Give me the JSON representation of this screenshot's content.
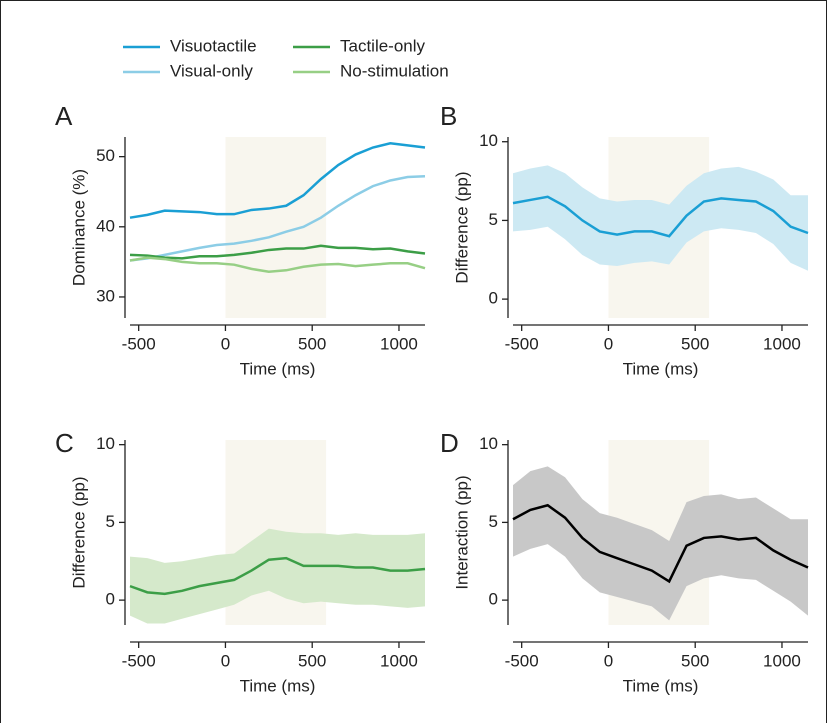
{
  "chart_data": [
    {
      "type": "line",
      "panel_label": "A",
      "xlabel": "Time (ms)",
      "ylabel": "Dominance (%)",
      "legend": "top",
      "x": [
        -550,
        -450,
        -350,
        -250,
        -150,
        -50,
        50,
        150,
        250,
        350,
        450,
        550,
        650,
        750,
        850,
        950,
        1050,
        1150
      ],
      "xlim": [
        -550,
        1150
      ],
      "xticks": [
        -500,
        0,
        500,
        1000
      ],
      "ylim": [
        27,
        52.8
      ],
      "yticks": [
        30,
        40,
        50
      ],
      "highlight": [
        0,
        580
      ],
      "highlight_color": "#f8f6ee",
      "series": [
        {
          "name": "Visuotactile",
          "color": "#1a9fd4",
          "values": [
            41.3,
            41.7,
            42.3,
            42.2,
            42.1,
            41.8,
            41.8,
            42.4,
            42.6,
            43.0,
            44.5,
            46.8,
            48.8,
            50.3,
            51.3,
            51.9,
            51.6,
            51.3
          ]
        },
        {
          "name": "Visual-only",
          "color": "#8ccde6",
          "values": [
            35.2,
            35.5,
            36.0,
            36.5,
            37.0,
            37.4,
            37.6,
            38.0,
            38.5,
            39.3,
            40.0,
            41.3,
            43.0,
            44.5,
            45.8,
            46.6,
            47.1,
            47.2
          ]
        },
        {
          "name": "Tactile-only",
          "color": "#3c9e47",
          "values": [
            36.0,
            35.9,
            35.6,
            35.5,
            35.8,
            35.8,
            36.0,
            36.3,
            36.7,
            36.9,
            36.9,
            37.3,
            37.0,
            37.0,
            36.8,
            36.9,
            36.5,
            36.2
          ]
        },
        {
          "name": "No-stimulation",
          "color": "#97cf85",
          "values": [
            35.2,
            35.6,
            35.4,
            35.0,
            34.8,
            34.8,
            34.6,
            34.0,
            33.6,
            33.8,
            34.3,
            34.6,
            34.7,
            34.4,
            34.6,
            34.8,
            34.8,
            34.1
          ]
        }
      ]
    },
    {
      "type": "line",
      "panel_label": "B",
      "xlabel": "Time (ms)",
      "ylabel": "Difference (pp)",
      "x": [
        -550,
        -450,
        -350,
        -250,
        -150,
        -50,
        50,
        150,
        250,
        350,
        450,
        550,
        650,
        750,
        850,
        950,
        1050,
        1150
      ],
      "xlim": [
        -550,
        1150
      ],
      "xticks": [
        -500,
        0,
        500,
        1000
      ],
      "ylim": [
        -1.2,
        10.3
      ],
      "yticks": [
        0,
        5,
        10
      ],
      "highlight": [
        0,
        580
      ],
      "highlight_color": "#f8f6ee",
      "color": "#1a9fd4",
      "band_color": "#cde9f3",
      "values": [
        6.1,
        6.3,
        6.5,
        5.9,
        5.0,
        4.3,
        4.1,
        4.3,
        4.3,
        4.0,
        5.3,
        6.2,
        6.4,
        6.3,
        6.2,
        5.6,
        4.6,
        4.2
      ],
      "lower": [
        4.3,
        4.4,
        4.6,
        3.8,
        2.8,
        2.2,
        2.1,
        2.3,
        2.4,
        2.2,
        3.6,
        4.3,
        4.5,
        4.4,
        4.2,
        3.5,
        2.3,
        1.8
      ],
      "upper": [
        8.0,
        8.3,
        8.5,
        8.0,
        7.1,
        6.4,
        6.2,
        6.3,
        6.3,
        6.0,
        7.2,
        8.0,
        8.3,
        8.4,
        8.1,
        7.6,
        6.6,
        6.6
      ]
    },
    {
      "type": "line",
      "panel_label": "C",
      "xlabel": "Time (ms)",
      "ylabel": "Difference (pp)",
      "x": [
        -550,
        -450,
        -350,
        -250,
        -150,
        -50,
        50,
        150,
        250,
        350,
        450,
        550,
        650,
        750,
        850,
        950,
        1050,
        1150
      ],
      "xlim": [
        -550,
        1150
      ],
      "xticks": [
        -500,
        0,
        500,
        1000
      ],
      "ylim": [
        -1.6,
        10.3
      ],
      "yticks": [
        0,
        5,
        10
      ],
      "highlight": [
        0,
        580
      ],
      "highlight_color": "#f8f6ee",
      "color": "#3c9e47",
      "band_color": "#d5e9cb",
      "values": [
        0.9,
        0.5,
        0.4,
        0.6,
        0.9,
        1.1,
        1.3,
        1.9,
        2.6,
        2.7,
        2.2,
        2.2,
        2.2,
        2.1,
        2.1,
        1.9,
        1.9,
        2.0
      ],
      "lower": [
        -1.0,
        -1.5,
        -1.5,
        -1.2,
        -0.9,
        -0.6,
        -0.3,
        0.3,
        0.6,
        0.1,
        -0.2,
        -0.1,
        -0.2,
        -0.3,
        -0.3,
        -0.4,
        -0.5,
        -0.4
      ],
      "upper": [
        2.8,
        2.7,
        2.4,
        2.5,
        2.7,
        2.9,
        3.0,
        3.8,
        4.6,
        4.4,
        4.3,
        4.3,
        4.2,
        4.3,
        4.2,
        4.2,
        4.2,
        4.3
      ]
    },
    {
      "type": "line",
      "panel_label": "D",
      "xlabel": "Time (ms)",
      "ylabel": "Interaction (pp)",
      "x": [
        -550,
        -450,
        -350,
        -250,
        -150,
        -50,
        50,
        150,
        250,
        350,
        450,
        550,
        650,
        750,
        850,
        950,
        1050,
        1150
      ],
      "xlim": [
        -550,
        1150
      ],
      "xticks": [
        -500,
        0,
        500,
        1000
      ],
      "ylim": [
        -1.6,
        10.3
      ],
      "yticks": [
        0,
        5,
        10
      ],
      "highlight": [
        0,
        580
      ],
      "highlight_color": "#f8f6ee",
      "color": "#000000",
      "band_color": "#c8c8c8",
      "values": [
        5.2,
        5.8,
        6.1,
        5.3,
        4.0,
        3.1,
        2.7,
        2.3,
        1.9,
        1.2,
        3.5,
        4.0,
        4.1,
        3.9,
        4.0,
        3.2,
        2.6,
        2.1
      ],
      "lower": [
        2.8,
        3.3,
        3.6,
        2.8,
        1.4,
        0.5,
        0.2,
        -0.1,
        -0.4,
        -1.3,
        0.9,
        1.4,
        1.6,
        1.4,
        1.3,
        0.6,
        -0.1,
        -1.0
      ],
      "upper": [
        7.4,
        8.3,
        8.6,
        7.9,
        6.5,
        5.6,
        5.3,
        4.9,
        4.5,
        3.8,
        6.3,
        6.7,
        6.8,
        6.5,
        6.6,
        5.9,
        5.2,
        5.2
      ]
    }
  ]
}
